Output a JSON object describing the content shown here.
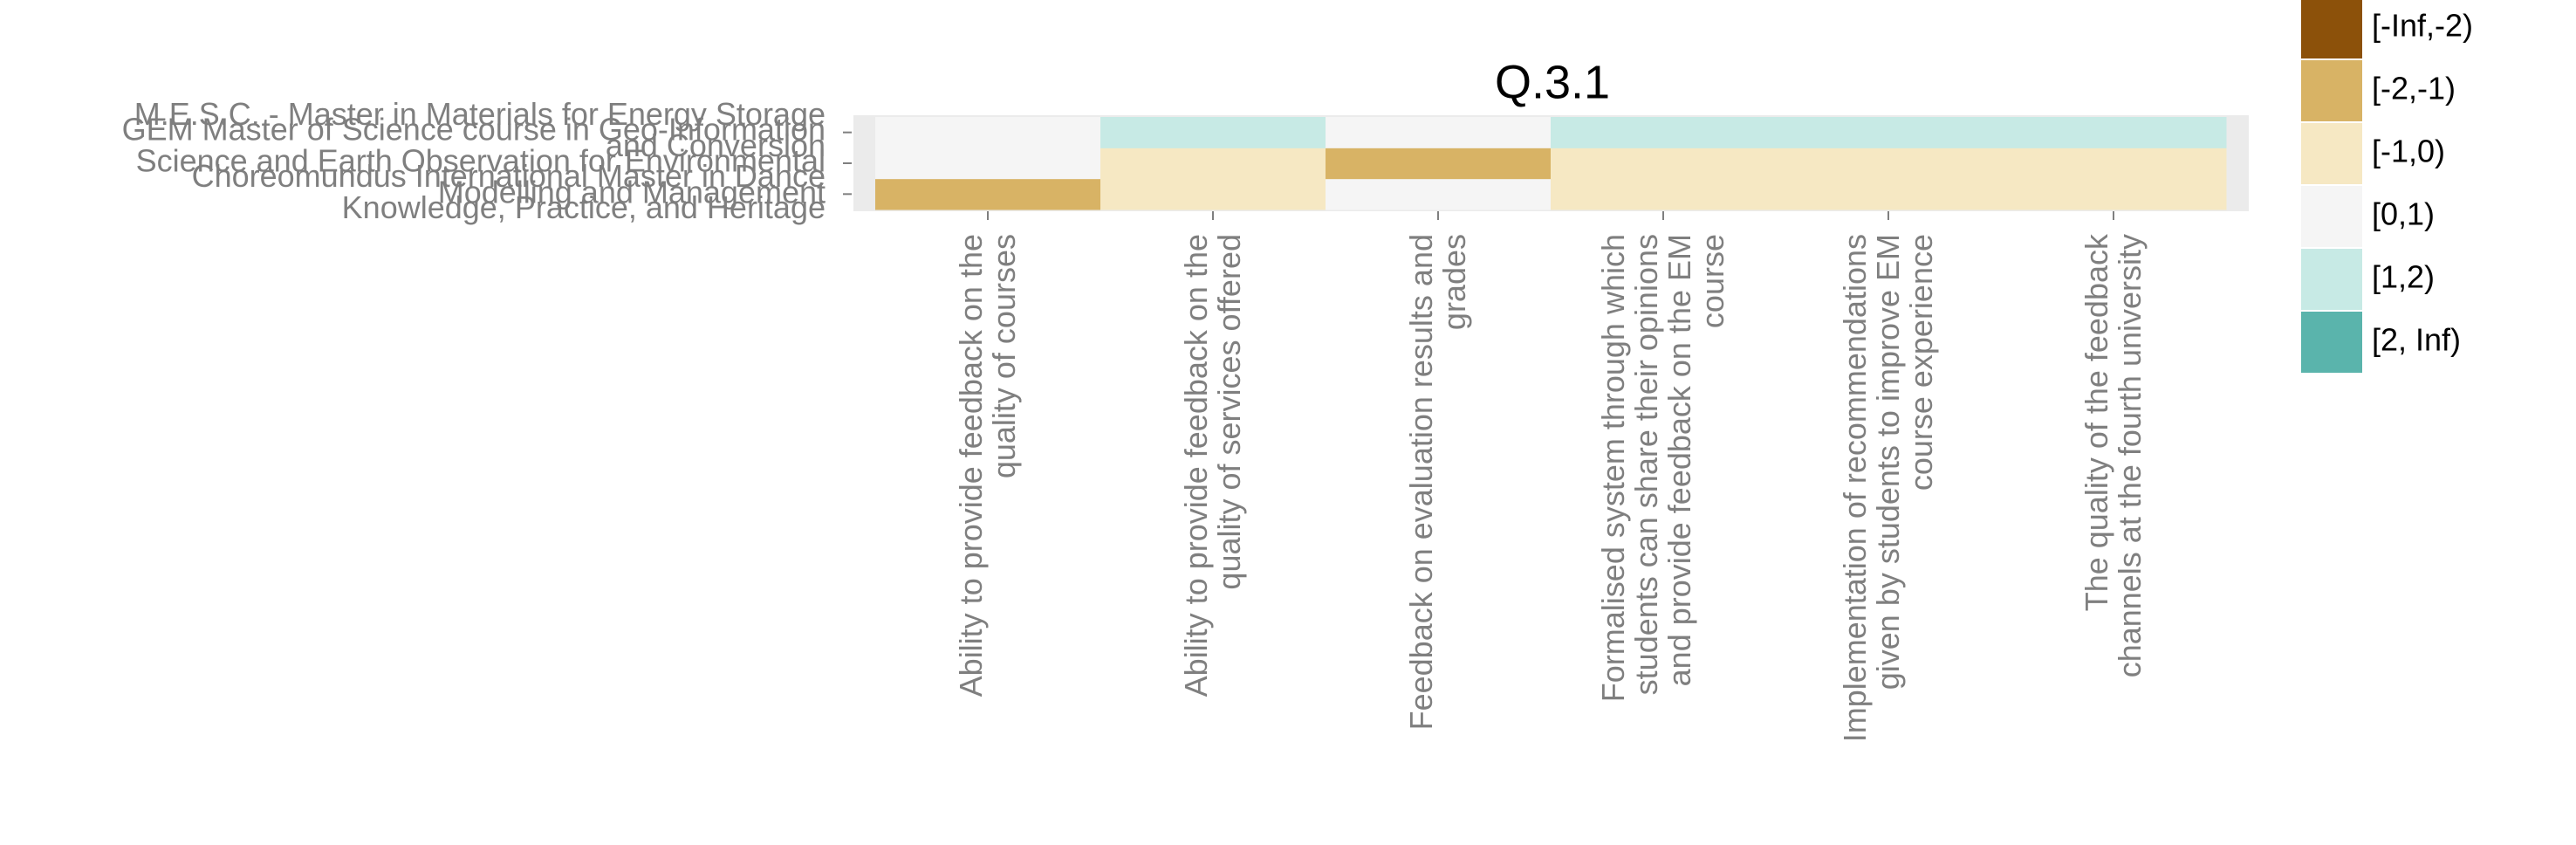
{
  "chart_data": {
    "type": "heatmap",
    "title": "Q.3.1",
    "categories": [
      [
        "Ability to provide feedback on the",
        "quality of courses"
      ],
      [
        "Ability to provide feedback on the",
        "quality of services offered"
      ],
      [
        "Feedback on evaluation results and",
        "grades"
      ],
      [
        "Formalised system through which",
        "students can share their opinions",
        "and provide feedback on the EM",
        "course"
      ],
      [
        "Implementation of recommendations",
        "given by students to improve EM",
        "course experience"
      ],
      [
        "The quality of the feedback",
        "channels at the fourth university"
      ]
    ],
    "rows": [
      [
        "Choreomundus International Master in Dance",
        "Knowledge, Practice, and Heritage"
      ],
      [
        "GEM Master of Science course in Geo-Information",
        "Science and Earth Observation for Environmental",
        "Modelling and Management"
      ],
      [
        "M.E.S.C. - Master in Materials for Energy Storage",
        "and Conversion"
      ]
    ],
    "legend": [
      {
        "label": "[-Inf,-2)",
        "color": "#8c510a"
      },
      {
        "label": "[-2,-1)",
        "color": "#d8b365"
      },
      {
        "label": "[-1,0)",
        "color": "#f6e8c3"
      },
      {
        "label": "[0,1)",
        "color": "#f5f5f5"
      },
      {
        "label": "[1,2)",
        "color": "#c7eae5"
      },
      {
        "label": "[2, Inf)",
        "color": "#5ab4ac"
      }
    ],
    "cells": [
      [
        1,
        2,
        3,
        2,
        2,
        2
      ],
      [
        3,
        2,
        1,
        2,
        2,
        2
      ],
      [
        3,
        4,
        3,
        4,
        4,
        4
      ]
    ]
  }
}
